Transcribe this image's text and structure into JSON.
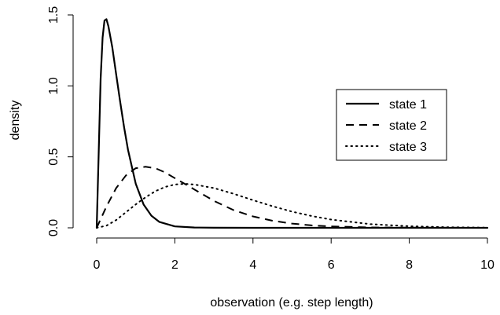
{
  "chart_data": {
    "type": "line",
    "xlabel": "observation (e.g. step length)",
    "ylabel": "density",
    "xlim": [
      0,
      10
    ],
    "ylim": [
      0,
      1.5
    ],
    "x_ticks": [
      0,
      2,
      4,
      6,
      8,
      10
    ],
    "x_tick_labels": [
      "0",
      "2",
      "4",
      "6",
      "8",
      "10"
    ],
    "y_ticks": [
      0.0,
      0.5,
      1.0,
      1.5
    ],
    "y_tick_labels": [
      "0.0",
      "0.5",
      "1.0",
      "1.5"
    ],
    "legend_position": "center-right",
    "grid": false,
    "series": [
      {
        "name": "state 1",
        "line_style": "solid",
        "x": [
          0,
          0.05,
          0.1,
          0.15,
          0.2,
          0.25,
          0.3,
          0.4,
          0.5,
          0.6,
          0.7,
          0.8,
          1.0,
          1.2,
          1.4,
          1.6,
          2.0,
          2.5,
          3.0,
          4.0,
          5.0,
          6.0,
          8.0,
          10.0
        ],
        "y": [
          0,
          0.52,
          1.05,
          1.34,
          1.46,
          1.47,
          1.42,
          1.27,
          1.08,
          0.89,
          0.71,
          0.55,
          0.31,
          0.165,
          0.085,
          0.042,
          0.01,
          0.002,
          0.0005,
          0,
          0,
          0,
          0,
          0
        ]
      },
      {
        "name": "state 2",
        "line_style": "dashed",
        "x": [
          0,
          0.25,
          0.5,
          0.75,
          1.0,
          1.25,
          1.5,
          1.75,
          2.0,
          2.5,
          3.0,
          3.5,
          4.0,
          4.5,
          5.0,
          5.5,
          6.0,
          7.0,
          8.0,
          10.0
        ],
        "y": [
          0,
          0.15,
          0.28,
          0.37,
          0.42,
          0.43,
          0.42,
          0.39,
          0.35,
          0.27,
          0.19,
          0.125,
          0.08,
          0.05,
          0.03,
          0.017,
          0.01,
          0.003,
          0.001,
          0
        ]
      },
      {
        "name": "state 3",
        "line_style": "dotted",
        "x": [
          0,
          0.25,
          0.5,
          0.75,
          1.0,
          1.25,
          1.5,
          1.75,
          2.0,
          2.25,
          2.5,
          3.0,
          3.5,
          4.0,
          4.5,
          5.0,
          5.5,
          6.0,
          7.0,
          8.0,
          9.0,
          10.0
        ],
        "y": [
          0,
          0.015,
          0.055,
          0.11,
          0.165,
          0.215,
          0.258,
          0.288,
          0.305,
          0.31,
          0.305,
          0.28,
          0.24,
          0.195,
          0.152,
          0.114,
          0.083,
          0.058,
          0.026,
          0.011,
          0.004,
          0.001
        ]
      }
    ]
  }
}
